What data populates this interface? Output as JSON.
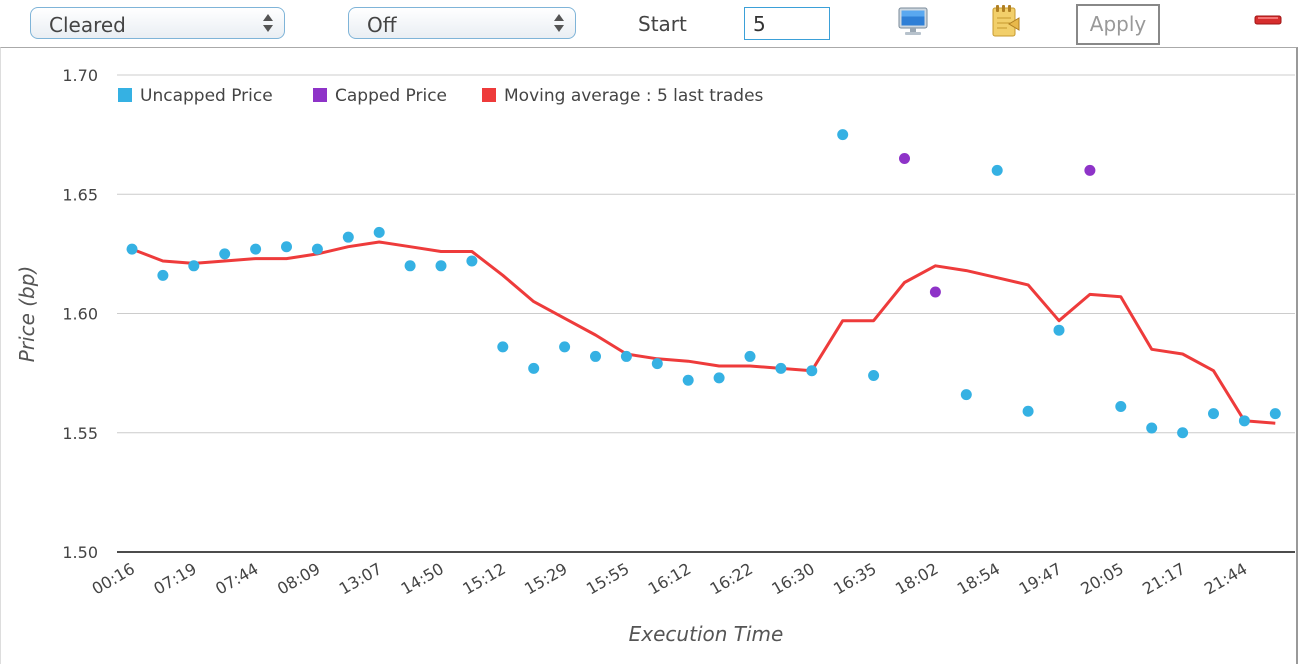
{
  "toolbar": {
    "status_select": "Cleared",
    "mode_select": "Off",
    "start_label": "Start",
    "start_value": "5",
    "apply_label": "Apply",
    "icons": [
      "monitor-icon",
      "notepad-icon",
      "minus-icon"
    ]
  },
  "colors": {
    "uncapped": "#35b1e3",
    "capped": "#8e33c8",
    "moving_average": "#ee3b3b",
    "grid": "#cccccc",
    "axis": "#111111"
  },
  "chart_data": {
    "type": "scatter",
    "xlabel": "Execution Time",
    "ylabel": "Price (bp)",
    "ylim": [
      1.5,
      1.7
    ],
    "yticks": [
      "1.50",
      "1.55",
      "1.60",
      "1.65",
      "1.70"
    ],
    "grid": "horizontal",
    "legend_position": "top-left",
    "x_tick_labels": [
      "00:16",
      "07:19",
      "07:44",
      "08:09",
      "13:07",
      "14:50",
      "15:12",
      "15:29",
      "15:55",
      "16:12",
      "16:22",
      "16:30",
      "16:35",
      "18:02",
      "18:54",
      "19:47",
      "20:05",
      "21:17",
      "21:44"
    ],
    "series": [
      {
        "name": "Uncapped Price",
        "type": "scatter",
        "points": [
          [
            0,
            1.627
          ],
          [
            1,
            1.616
          ],
          [
            2,
            1.62
          ],
          [
            3,
            1.625
          ],
          [
            4,
            1.627
          ],
          [
            5,
            1.628
          ],
          [
            6,
            1.627
          ],
          [
            7,
            1.632
          ],
          [
            8,
            1.634
          ],
          [
            9,
            1.62
          ],
          [
            10,
            1.62
          ],
          [
            11,
            1.622
          ],
          [
            12,
            1.586
          ],
          [
            13,
            1.577
          ],
          [
            14,
            1.586
          ],
          [
            15,
            1.582
          ],
          [
            16,
            1.582
          ],
          [
            17,
            1.579
          ],
          [
            18,
            1.572
          ],
          [
            19,
            1.573
          ],
          [
            20,
            1.582
          ],
          [
            21,
            1.577
          ],
          [
            22,
            1.576
          ],
          [
            23,
            1.675
          ],
          [
            24,
            1.574
          ],
          [
            27,
            1.566
          ],
          [
            28,
            1.66
          ],
          [
            29,
            1.559
          ],
          [
            30,
            1.593
          ],
          [
            32,
            1.561
          ],
          [
            33,
            1.552
          ],
          [
            34,
            1.55
          ],
          [
            35,
            1.558
          ],
          [
            36,
            1.555
          ],
          [
            37,
            1.558
          ]
        ]
      },
      {
        "name": "Capped Price",
        "type": "scatter",
        "points": [
          [
            25,
            1.665
          ],
          [
            26,
            1.609
          ],
          [
            31,
            1.66
          ]
        ]
      },
      {
        "name": "Moving average : 5 last trades",
        "type": "line",
        "points": [
          [
            0,
            1.627
          ],
          [
            1,
            1.622
          ],
          [
            2,
            1.621
          ],
          [
            3,
            1.622
          ],
          [
            4,
            1.623
          ],
          [
            5,
            1.623
          ],
          [
            6,
            1.625
          ],
          [
            7,
            1.628
          ],
          [
            8,
            1.63
          ],
          [
            9,
            1.628
          ],
          [
            10,
            1.626
          ],
          [
            11,
            1.626
          ],
          [
            12,
            1.616
          ],
          [
            13,
            1.605
          ],
          [
            14,
            1.598
          ],
          [
            15,
            1.591
          ],
          [
            16,
            1.583
          ],
          [
            17,
            1.581
          ],
          [
            18,
            1.58
          ],
          [
            19,
            1.578
          ],
          [
            20,
            1.578
          ],
          [
            21,
            1.577
          ],
          [
            22,
            1.576
          ],
          [
            23,
            1.597
          ],
          [
            24,
            1.597
          ],
          [
            25,
            1.613
          ],
          [
            26,
            1.62
          ],
          [
            27,
            1.618
          ],
          [
            28,
            1.615
          ],
          [
            29,
            1.612
          ],
          [
            30,
            1.597
          ],
          [
            31,
            1.608
          ],
          [
            32,
            1.607
          ],
          [
            33,
            1.585
          ],
          [
            34,
            1.583
          ],
          [
            35,
            1.576
          ],
          [
            36,
            1.555
          ],
          [
            37,
            1.554
          ]
        ]
      }
    ]
  }
}
